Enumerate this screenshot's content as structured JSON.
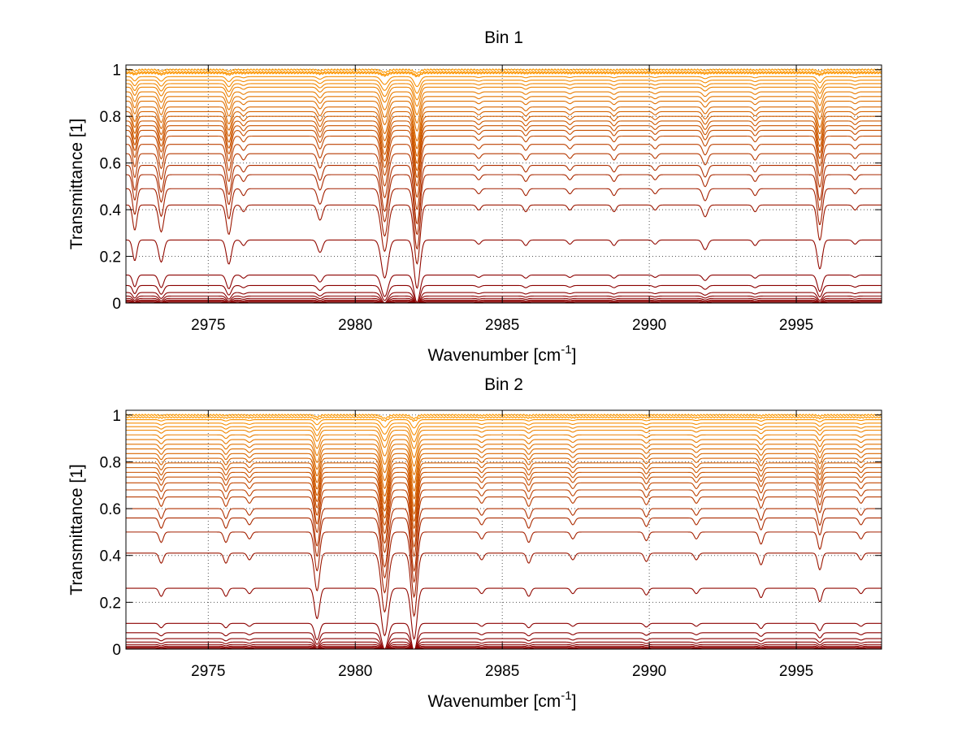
{
  "chart_data": [
    {
      "type": "line",
      "title": "Bin 1",
      "xlabel": "Wavenumber [cm",
      "xlabel_superscript": "-1",
      "xlabel_suffix": "]",
      "ylabel": "Transmittance [1]",
      "xlim": [
        2972.2,
        2997.9
      ],
      "ylim": [
        0,
        1.02
      ],
      "xticks": [
        2975,
        2980,
        2985,
        2990,
        2995
      ],
      "xtick_labels": [
        "2975",
        "2980",
        "2985",
        "2990",
        "2995"
      ],
      "yticks": [
        0,
        0.2,
        0.4,
        0.6,
        0.8,
        1
      ],
      "ytick_labels": [
        "0",
        "0.2",
        "0.4",
        "0.6",
        "0.8",
        "1"
      ],
      "grid": true,
      "baselines": [
        1.0,
        0.99,
        0.985,
        0.97,
        0.955,
        0.94,
        0.925,
        0.905,
        0.885,
        0.865,
        0.84,
        0.82,
        0.8,
        0.78,
        0.76,
        0.74,
        0.715,
        0.68,
        0.64,
        0.59,
        0.55,
        0.49,
        0.42,
        0.27,
        0.12,
        0.075,
        0.045,
        0.03,
        0.02,
        0.013,
        0.008,
        0.004
      ],
      "absorption_lines": [
        {
          "center": 2972.5,
          "strength": 0.3,
          "width": 0.1
        },
        {
          "center": 2973.4,
          "strength": 0.32,
          "width": 0.12
        },
        {
          "center": 2975.7,
          "strength": 0.35,
          "width": 0.12
        },
        {
          "center": 2976.2,
          "strength": 0.08,
          "width": 0.1
        },
        {
          "center": 2978.8,
          "strength": 0.18,
          "width": 0.12
        },
        {
          "center": 2981.0,
          "strength": 0.55,
          "width": 0.16
        },
        {
          "center": 2982.1,
          "strength": 0.7,
          "width": 0.14
        },
        {
          "center": 2984.2,
          "strength": 0.06,
          "width": 0.1
        },
        {
          "center": 2985.8,
          "strength": 0.08,
          "width": 0.1
        },
        {
          "center": 2987.3,
          "strength": 0.06,
          "width": 0.1
        },
        {
          "center": 2988.8,
          "strength": 0.08,
          "width": 0.1
        },
        {
          "center": 2990.2,
          "strength": 0.06,
          "width": 0.1
        },
        {
          "center": 2991.9,
          "strength": 0.14,
          "width": 0.12
        },
        {
          "center": 2993.6,
          "strength": 0.08,
          "width": 0.1
        },
        {
          "center": 2995.8,
          "strength": 0.42,
          "width": 0.12
        },
        {
          "center": 2997.0,
          "strength": 0.06,
          "width": 0.1
        }
      ],
      "color_range": [
        "#8b0000",
        "#ff9900"
      ]
    },
    {
      "type": "line",
      "title": "Bin 2",
      "xlabel": "Wavenumber [cm",
      "xlabel_superscript": "-1",
      "xlabel_suffix": "]",
      "ylabel": "Transmittance [1]",
      "xlim": [
        2972.2,
        2997.9
      ],
      "ylim": [
        0,
        1.02
      ],
      "xticks": [
        2975,
        2980,
        2985,
        2990,
        2995
      ],
      "xtick_labels": [
        "2975",
        "2980",
        "2985",
        "2990",
        "2995"
      ],
      "yticks": [
        0,
        0.2,
        0.4,
        0.6,
        0.8,
        1
      ],
      "ytick_labels": [
        "0",
        "0.2",
        "0.4",
        "0.6",
        "0.8",
        "1"
      ],
      "grid": true,
      "baselines": [
        1.0,
        0.99,
        0.98,
        0.965,
        0.95,
        0.935,
        0.915,
        0.895,
        0.875,
        0.855,
        0.835,
        0.815,
        0.795,
        0.775,
        0.755,
        0.735,
        0.71,
        0.68,
        0.65,
        0.6,
        0.56,
        0.5,
        0.41,
        0.26,
        0.11,
        0.07,
        0.045,
        0.03,
        0.02,
        0.013,
        0.008,
        0.004
      ],
      "absorption_lines": [
        {
          "center": 2973.4,
          "strength": 0.12,
          "width": 0.1
        },
        {
          "center": 2975.6,
          "strength": 0.12,
          "width": 0.1
        },
        {
          "center": 2976.4,
          "strength": 0.08,
          "width": 0.1
        },
        {
          "center": 2978.7,
          "strength": 0.45,
          "width": 0.12
        },
        {
          "center": 2981.0,
          "strength": 0.7,
          "width": 0.16
        },
        {
          "center": 2982.0,
          "strength": 0.75,
          "width": 0.14
        },
        {
          "center": 2984.3,
          "strength": 0.08,
          "width": 0.1
        },
        {
          "center": 2985.9,
          "strength": 0.12,
          "width": 0.1
        },
        {
          "center": 2987.4,
          "strength": 0.08,
          "width": 0.1
        },
        {
          "center": 2989.9,
          "strength": 0.1,
          "width": 0.1
        },
        {
          "center": 2991.6,
          "strength": 0.08,
          "width": 0.1
        },
        {
          "center": 2993.8,
          "strength": 0.14,
          "width": 0.1
        },
        {
          "center": 2995.8,
          "strength": 0.2,
          "width": 0.1
        },
        {
          "center": 2997.2,
          "strength": 0.08,
          "width": 0.1
        }
      ],
      "color_range": [
        "#8b0000",
        "#ff9900"
      ]
    }
  ]
}
